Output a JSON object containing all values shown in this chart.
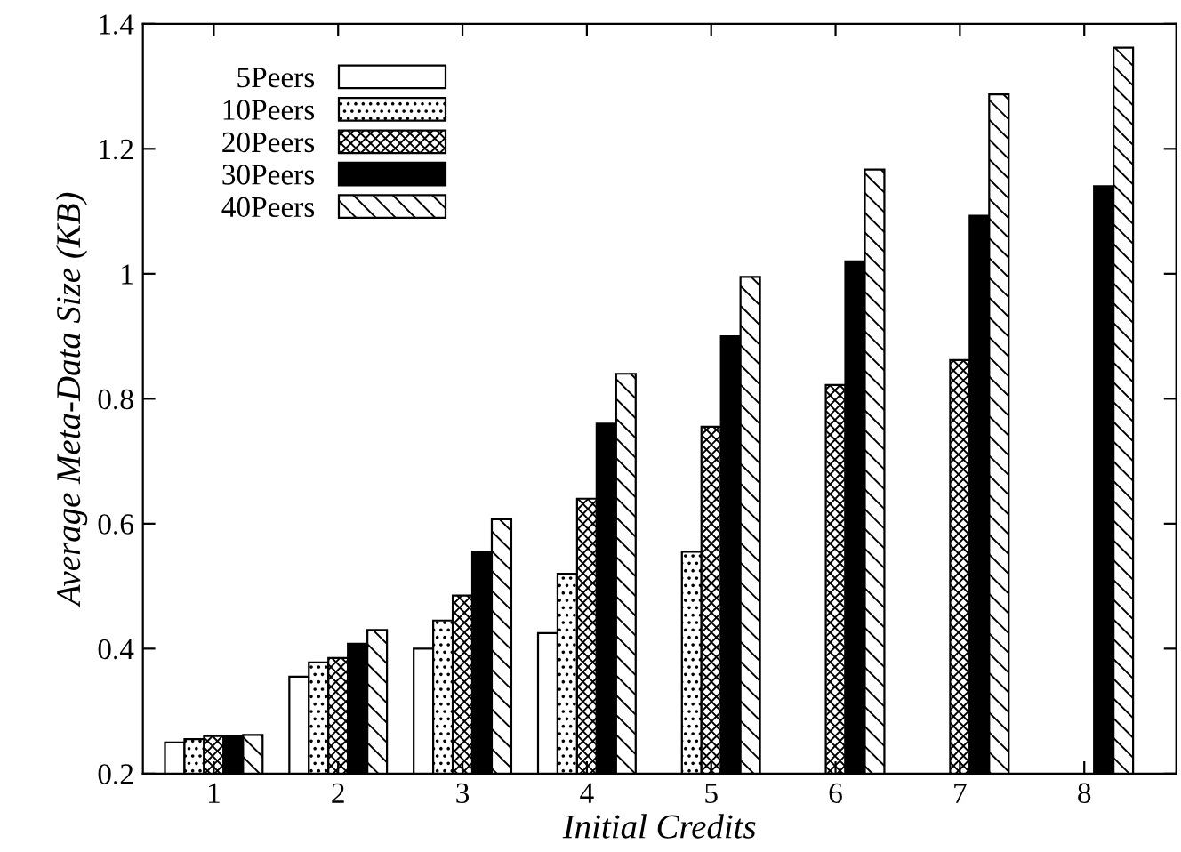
{
  "chart_data": {
    "type": "bar",
    "xlabel": "Initial Credits",
    "ylabel": "Average Meta-Data Size (KB)",
    "categories": [
      "1",
      "2",
      "3",
      "4",
      "5",
      "6",
      "7",
      "8"
    ],
    "series": [
      {
        "name": "5Peers",
        "color": "#ffffff",
        "values": [
          0.25,
          0.355,
          0.4,
          0.425,
          null,
          null,
          null,
          null
        ]
      },
      {
        "name": "10Peers",
        "color": "#000000",
        "values": [
          0.255,
          0.378,
          0.445,
          0.52,
          0.555,
          null,
          null,
          null
        ]
      },
      {
        "name": "20Peers",
        "color": "#000000",
        "values": [
          0.26,
          0.385,
          0.485,
          0.64,
          0.755,
          0.822,
          0.862,
          null
        ]
      },
      {
        "name": "30Peers",
        "color": "#000000",
        "values": [
          0.26,
          0.408,
          0.555,
          0.76,
          0.9,
          1.02,
          1.093,
          1.14
        ]
      },
      {
        "name": "40Peers",
        "color": "#000000",
        "values": [
          0.262,
          0.43,
          0.607,
          0.84,
          0.995,
          1.167,
          1.287,
          1.362
        ]
      }
    ],
    "ylim": [
      0.2,
      1.4
    ],
    "yticks": [
      0.2,
      0.4,
      0.6,
      0.8,
      1,
      1.2,
      1.4
    ],
    "grid": false,
    "legend": "top left"
  }
}
